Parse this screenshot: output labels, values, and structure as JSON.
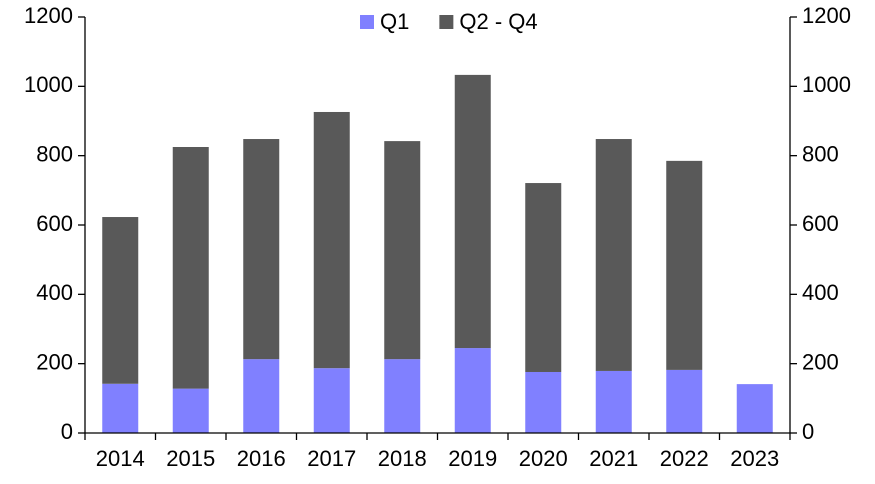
{
  "chart_data": {
    "type": "stacked_bar",
    "categories": [
      "2014",
      "2015",
      "2016",
      "2017",
      "2018",
      "2019",
      "2020",
      "2021",
      "2022",
      "2023"
    ],
    "series": [
      {
        "name": "Q1",
        "color": "#8080ff",
        "values": [
          142,
          128,
          213,
          187,
          213,
          245,
          176,
          179,
          182,
          141
        ]
      },
      {
        "name": "Q2 - Q4",
        "color": "#595959",
        "values": [
          481,
          697,
          635,
          739,
          629,
          788,
          545,
          669,
          603,
          null
        ]
      }
    ],
    "ylim": [
      0,
      1200
    ],
    "yticks": [
      0,
      200,
      400,
      600,
      800,
      1000,
      1200
    ],
    "y2lim": [
      0,
      1200
    ],
    "y2ticks": [
      0,
      200,
      400,
      600,
      800,
      1000,
      1200
    ],
    "legend": "top",
    "grid": false
  }
}
